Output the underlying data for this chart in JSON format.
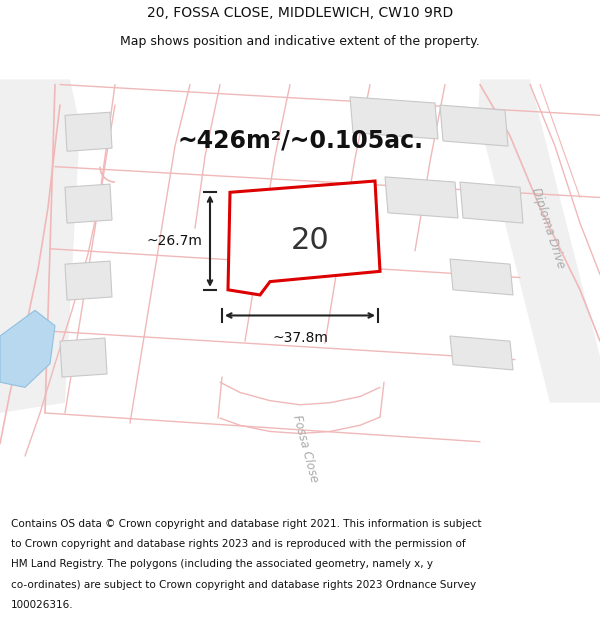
{
  "title_line1": "20, FOSSA CLOSE, MIDDLEWICH, CW10 9RD",
  "title_line2": "Map shows position and indicative extent of the property.",
  "area_text": "~426m²/~0.105ac.",
  "plot_number": "20",
  "dim_width": "~37.8m",
  "dim_height": "~26.7m",
  "footer_lines": [
    "Contains OS data © Crown copyright and database right 2021. This information is subject",
    "to Crown copyright and database rights 2023 and is reproduced with the permission of",
    "HM Land Registry. The polygons (including the associated geometry, namely x, y",
    "co-ordinates) are subject to Crown copyright and database rights 2023 Ordnance Survey",
    "100026316."
  ],
  "bg_color": "#ffffff",
  "map_bg": "#ffffff",
  "road_line_color": "#f0b8b8",
  "block_fill": "#e8e8e8",
  "block_edge": "#c8c8c8",
  "plot_edge_color": "#dd0000",
  "water_color": "#b8d8f0",
  "road_label_color": "#aaaaaa",
  "street_label": "Fossa Close",
  "road_label": "Diploma Drive",
  "fig_width": 6.0,
  "fig_height": 6.25,
  "dpi": 100,
  "title_fontsize": 10,
  "subtitle_fontsize": 9,
  "area_fontsize": 17,
  "dim_fontsize": 10,
  "plot_num_fontsize": 22,
  "footer_fontsize": 7.5
}
